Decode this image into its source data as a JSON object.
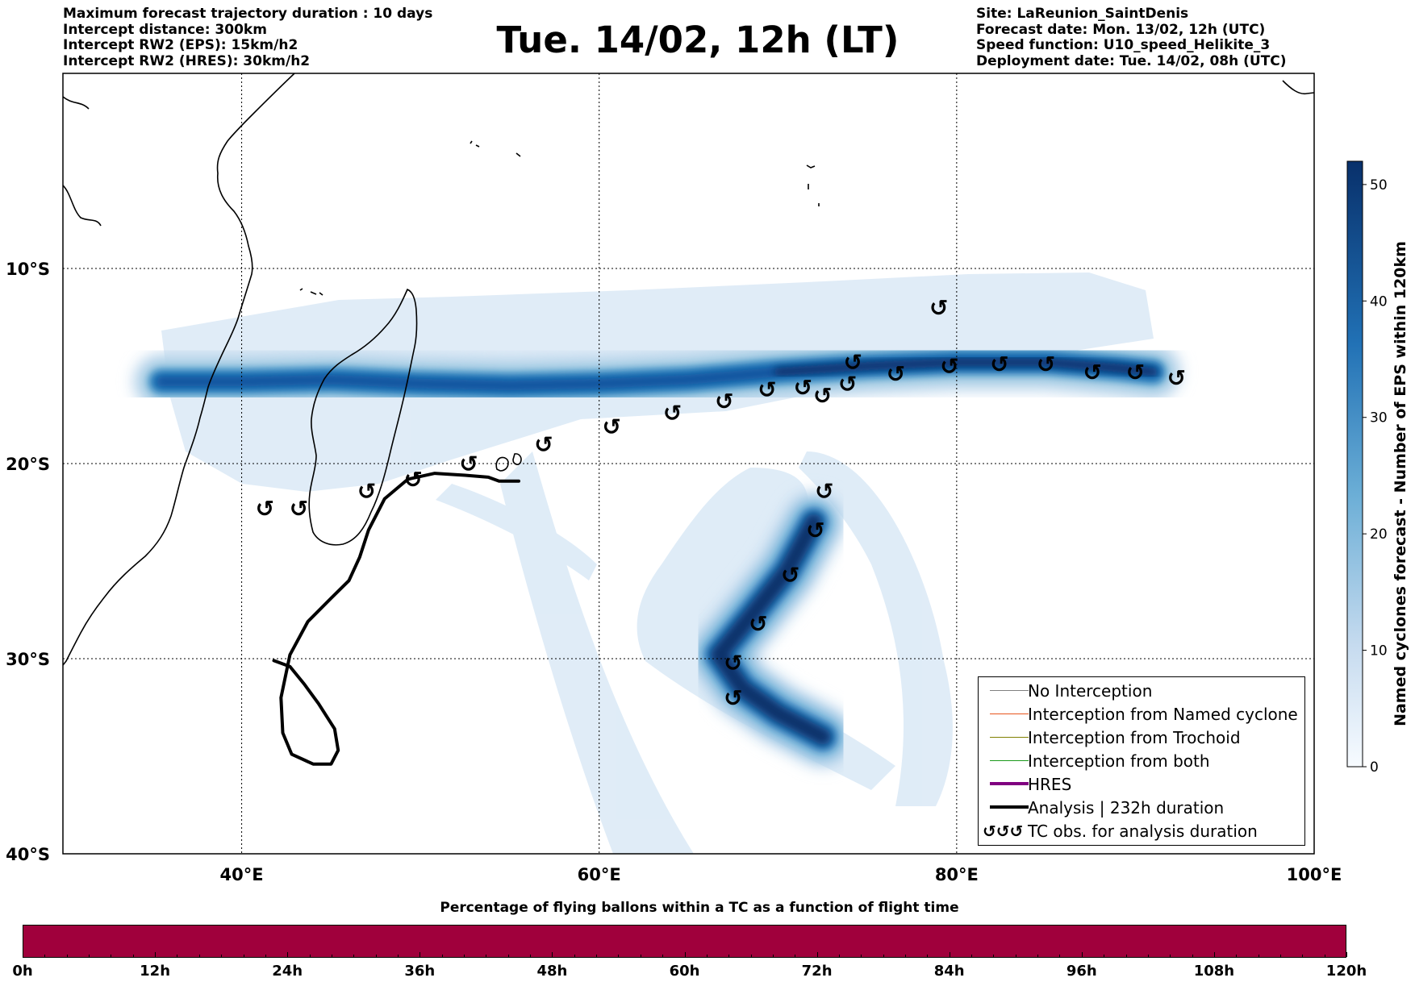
{
  "header": {
    "title": "Tue. 14/02, 12h (LT)",
    "left_info": [
      "Maximum forecast trajectory duration : 10 days",
      "Intercept distance: 300km",
      "Intercept RW2 (EPS):  15km/h2",
      "Intercept RW2 (HRES): 30km/h2"
    ],
    "right_info": [
      "Site: LaReunion_SaintDenis",
      "Forecast date: Mon. 13/02, 12h (UTC)",
      "Speed function: U10_speed_Helikite_3",
      "Deployment date: Tue. 14/02, 08h (UTC)"
    ]
  },
  "map": {
    "lon_range": [
      30,
      100
    ],
    "lat_range": [
      -40,
      0
    ],
    "lon_ticks": [
      {
        "lon": 40,
        "label": "40°E"
      },
      {
        "lon": 60,
        "label": "60°E"
      },
      {
        "lon": 80,
        "label": "80°E"
      },
      {
        "lon": 100,
        "label": "100°E"
      }
    ],
    "lat_ticks": [
      {
        "lat": -10,
        "label": "10°S"
      },
      {
        "lat": -20,
        "label": "20°S"
      },
      {
        "lat": -30,
        "label": "30°S"
      },
      {
        "lat": -40,
        "label": "40°S"
      }
    ],
    "grid": true,
    "density_color_low": "#deebf7",
    "density_color_high": "#08306b",
    "analysis_track": [
      [
        41.8,
        -30.1
      ],
      [
        42.7,
        -30.4
      ],
      [
        43.5,
        -31.3
      ],
      [
        44.3,
        -32.3
      ],
      [
        45.2,
        -33.6
      ],
      [
        45.4,
        -34.7
      ],
      [
        45.0,
        -35.4
      ],
      [
        44.0,
        -35.4
      ],
      [
        42.8,
        -34.9
      ],
      [
        42.3,
        -33.8
      ],
      [
        42.2,
        -32.0
      ],
      [
        42.7,
        -29.8
      ],
      [
        43.7,
        -28.1
      ],
      [
        45.0,
        -26.9
      ],
      [
        46.0,
        -26.0
      ],
      [
        46.6,
        -24.8
      ],
      [
        47.1,
        -23.4
      ],
      [
        48.0,
        -21.8
      ],
      [
        49.3,
        -20.8
      ],
      [
        50.8,
        -20.5
      ],
      [
        52.5,
        -20.6
      ],
      [
        53.8,
        -20.7
      ],
      [
        54.4,
        -20.9
      ],
      [
        55.5,
        -20.9
      ]
    ],
    "cyclone_sym": "↺",
    "tc_obs": [
      [
        41.3,
        -22.3
      ],
      [
        43.2,
        -22.3
      ],
      [
        47.0,
        -21.4
      ],
      [
        49.6,
        -20.8
      ],
      [
        52.7,
        -20.0
      ],
      [
        56.9,
        -19.0
      ],
      [
        60.7,
        -18.1
      ],
      [
        64.1,
        -17.4
      ],
      [
        67.0,
        -16.8
      ],
      [
        69.4,
        -16.2
      ],
      [
        71.4,
        -16.1
      ],
      [
        72.5,
        -16.5
      ],
      [
        73.9,
        -15.9
      ],
      [
        74.2,
        -14.8
      ],
      [
        76.6,
        -15.4
      ],
      [
        79.0,
        -12.0
      ],
      [
        79.6,
        -15.0
      ],
      [
        82.4,
        -14.9
      ],
      [
        85.0,
        -14.9
      ],
      [
        87.6,
        -15.3
      ],
      [
        90.0,
        -15.3
      ],
      [
        92.3,
        -15.6
      ],
      [
        72.6,
        -21.4
      ],
      [
        72.1,
        -23.4
      ],
      [
        70.7,
        -25.7
      ],
      [
        68.9,
        -28.2
      ],
      [
        67.5,
        -30.2
      ],
      [
        67.5,
        -32.0
      ]
    ],
    "density_main_track": [
      [
        35.5,
        -15.8
      ],
      [
        40,
        -15.8
      ],
      [
        45,
        -15.7
      ],
      [
        50,
        -15.9
      ],
      [
        55,
        -16.0
      ],
      [
        60,
        -15.9
      ],
      [
        65,
        -15.7
      ],
      [
        70,
        -15.3
      ],
      [
        75,
        -15.0
      ],
      [
        80,
        -14.8
      ],
      [
        85,
        -14.8
      ],
      [
        89,
        -15.1
      ],
      [
        91,
        -15.3
      ]
    ],
    "density_second_track": [
      [
        72.0,
        -23.0
      ],
      [
        70.5,
        -25.5
      ],
      [
        68.5,
        -27.8
      ],
      [
        66.7,
        -29.8
      ],
      [
        68.0,
        -31.5
      ],
      [
        70.0,
        -32.8
      ],
      [
        72.5,
        -34.0
      ]
    ]
  },
  "colorbar_right": {
    "label": "Named cyclones forecast - Number of EPS within 120km",
    "min": 0,
    "max": 52,
    "ticks": [
      "0",
      "10",
      "20",
      "30",
      "40",
      "50"
    ]
  },
  "legend": {
    "items": [
      {
        "label": "No Interception",
        "color": "#808080",
        "width": 1
      },
      {
        "label": "Interception from Named cyclone",
        "color": "#e8541c",
        "width": 1
      },
      {
        "label": "Interception from Trochoid",
        "color": "#808000",
        "width": 1
      },
      {
        "label": "Interception from both",
        "color": "#1a9a1a",
        "width": 1
      },
      {
        "label": "HRES",
        "color": "#800080",
        "width": 4
      },
      {
        "label": "Analysis | 232h duration",
        "color": "#000000",
        "width": 4
      },
      {
        "label": "TC obs. for analysis duration",
        "color": "",
        "width": 0,
        "symbol": "↺↺↺"
      }
    ]
  },
  "bottom_bar": {
    "title": "Percentage of flying ballons within a TC as a function of flight time",
    "color": "#a0003c",
    "labels": [
      "0h",
      "12h",
      "24h",
      "36h",
      "48h",
      "60h",
      "72h",
      "84h",
      "96h",
      "108h",
      "120h"
    ]
  }
}
